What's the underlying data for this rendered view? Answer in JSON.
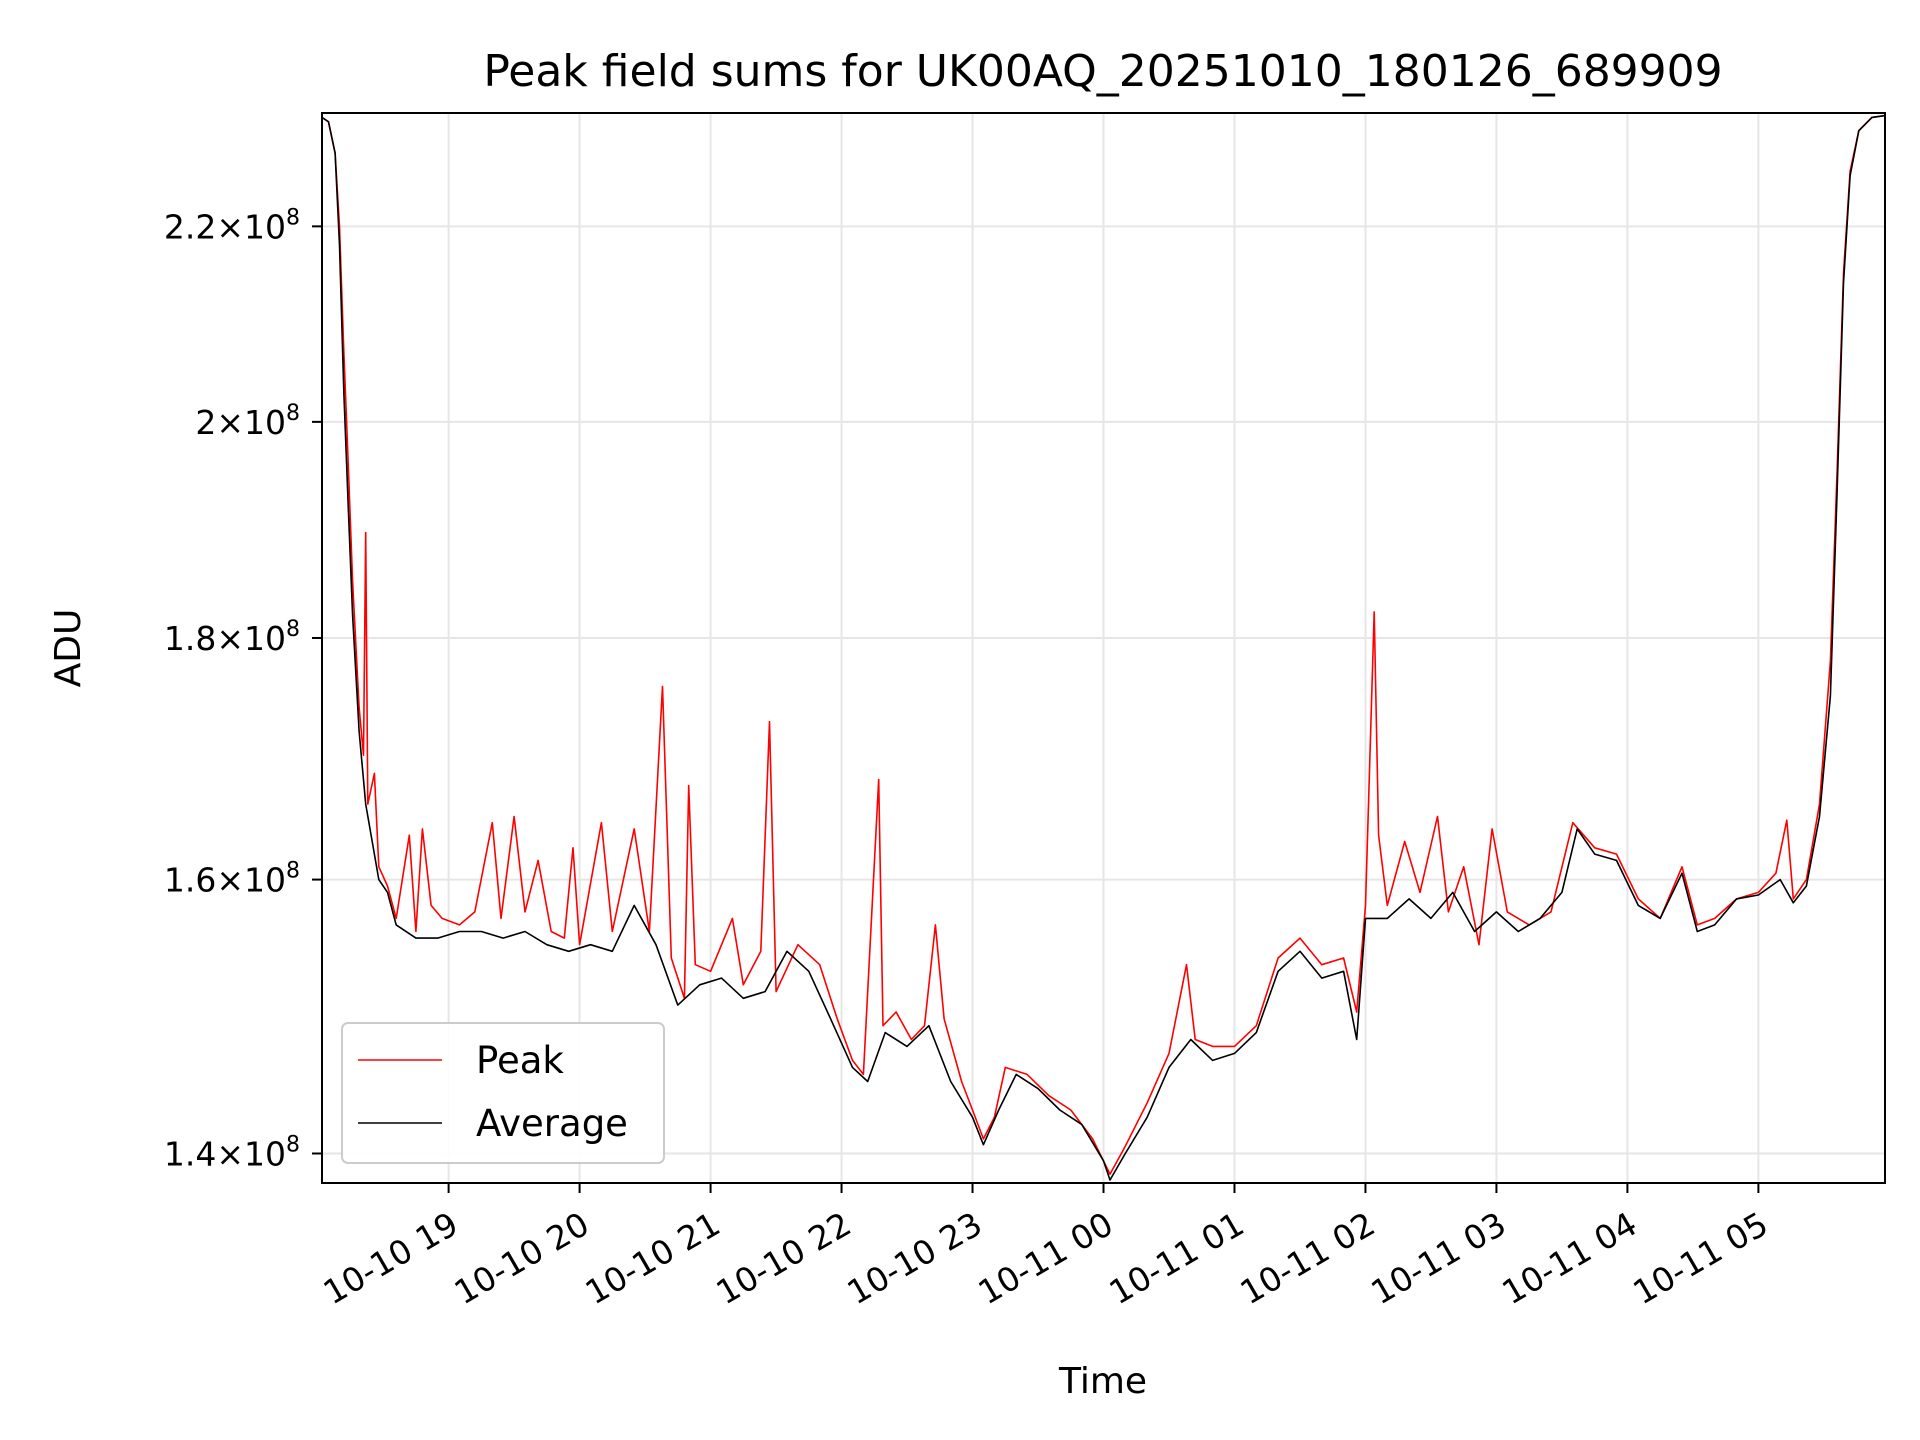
{
  "chart_data": {
    "type": "line",
    "title": "Peak field sums for UK00AQ_20251010_180126_689909",
    "xlabel": "Time",
    "ylabel": "ADU",
    "yscale": "log",
    "grid": true,
    "legend_position": "lower-left",
    "xlim": [
      "2025-10-10 18:02",
      "2025-10-11 05:58"
    ],
    "ylim": [
      138000000,
      232500000
    ],
    "x_ticks": [
      {
        "value": "2025-10-10 19:00",
        "label": "10-10 19"
      },
      {
        "value": "2025-10-10 20:00",
        "label": "10-10 20"
      },
      {
        "value": "2025-10-10 21:00",
        "label": "10-10 21"
      },
      {
        "value": "2025-10-10 22:00",
        "label": "10-10 22"
      },
      {
        "value": "2025-10-10 23:00",
        "label": "10-10 23"
      },
      {
        "value": "2025-10-11 00:00",
        "label": "10-11 00"
      },
      {
        "value": "2025-10-11 01:00",
        "label": "10-11 01"
      },
      {
        "value": "2025-10-11 02:00",
        "label": "10-11 02"
      },
      {
        "value": "2025-10-11 03:00",
        "label": "10-11 03"
      },
      {
        "value": "2025-10-11 04:00",
        "label": "10-11 04"
      },
      {
        "value": "2025-10-11 05:00",
        "label": "10-11 05"
      }
    ],
    "y_ticks": [
      {
        "value": 140000000,
        "mantissa": "1.4",
        "exponent": "8"
      },
      {
        "value": 160000000,
        "mantissa": "1.6",
        "exponent": "8"
      },
      {
        "value": 180000000,
        "mantissa": "1.8",
        "exponent": "8"
      },
      {
        "value": 200000000,
        "mantissa": "2",
        "exponent": "8"
      },
      {
        "value": 220000000,
        "mantissa": "2.2",
        "exponent": "8"
      }
    ],
    "series": [
      {
        "name": "Peak",
        "color": "#ff0000",
        "points": [
          [
            "2025-10-10 18:02",
            232000000
          ],
          [
            "2025-10-10 18:05",
            231500000
          ],
          [
            "2025-10-10 18:08",
            228000000
          ],
          [
            "2025-10-10 18:10",
            220000000
          ],
          [
            "2025-10-10 18:12",
            207000000
          ],
          [
            "2025-10-10 18:13",
            201500000
          ],
          [
            "2025-10-10 18:14",
            196000000
          ],
          [
            "2025-10-10 18:16",
            185000000
          ],
          [
            "2025-10-10 18:19",
            174000000
          ],
          [
            "2025-10-10 18:21",
            170000000
          ],
          [
            "2025-10-10 18:22",
            189500000
          ],
          [
            "2025-10-10 18:23",
            166000000
          ],
          [
            "2025-10-10 18:26",
            168500000
          ],
          [
            "2025-10-10 18:28",
            161000000
          ],
          [
            "2025-10-10 18:32",
            159500000
          ],
          [
            "2025-10-10 18:36",
            157000000
          ],
          [
            "2025-10-10 18:42",
            163500000
          ],
          [
            "2025-10-10 18:45",
            156000000
          ],
          [
            "2025-10-10 18:48",
            164000000
          ],
          [
            "2025-10-10 18:52",
            158000000
          ],
          [
            "2025-10-10 18:57",
            157000000
          ],
          [
            "2025-10-10 19:05",
            156500000
          ],
          [
            "2025-10-10 19:12",
            157500000
          ],
          [
            "2025-10-10 19:20",
            164500000
          ],
          [
            "2025-10-10 19:24",
            157000000
          ],
          [
            "2025-10-10 19:30",
            165000000
          ],
          [
            "2025-10-10 19:35",
            157500000
          ],
          [
            "2025-10-10 19:41",
            161500000
          ],
          [
            "2025-10-10 19:47",
            156000000
          ],
          [
            "2025-10-10 19:53",
            155500000
          ],
          [
            "2025-10-10 19:57",
            162500000
          ],
          [
            "2025-10-10 20:00",
            155000000
          ],
          [
            "2025-10-10 20:10",
            164500000
          ],
          [
            "2025-10-10 20:15",
            156000000
          ],
          [
            "2025-10-10 20:25",
            164000000
          ],
          [
            "2025-10-10 20:32",
            156000000
          ],
          [
            "2025-10-10 20:38",
            175800000
          ],
          [
            "2025-10-10 20:42",
            154000000
          ],
          [
            "2025-10-10 20:48",
            151000000
          ],
          [
            "2025-10-10 20:50",
            167500000
          ],
          [
            "2025-10-10 20:53",
            153500000
          ],
          [
            "2025-10-10 21:00",
            153000000
          ],
          [
            "2025-10-10 21:10",
            157000000
          ],
          [
            "2025-10-10 21:15",
            152000000
          ],
          [
            "2025-10-10 21:23",
            154500000
          ],
          [
            "2025-10-10 21:27",
            172800000
          ],
          [
            "2025-10-10 21:30",
            151500000
          ],
          [
            "2025-10-10 21:40",
            155000000
          ],
          [
            "2025-10-10 21:50",
            153500000
          ],
          [
            "2025-10-10 21:58",
            149500000
          ],
          [
            "2025-10-10 22:05",
            146500000
          ],
          [
            "2025-10-10 22:10",
            145500000
          ],
          [
            "2025-10-10 22:17",
            168000000
          ],
          [
            "2025-10-10 22:19",
            149000000
          ],
          [
            "2025-10-10 22:25",
            150000000
          ],
          [
            "2025-10-10 22:32",
            148000000
          ],
          [
            "2025-10-10 22:38",
            149000000
          ],
          [
            "2025-10-10 22:43",
            156500000
          ],
          [
            "2025-10-10 22:47",
            149500000
          ],
          [
            "2025-10-10 22:55",
            145000000
          ],
          [
            "2025-10-10 23:00",
            143000000
          ],
          [
            "2025-10-10 23:05",
            141000000
          ],
          [
            "2025-10-10 23:10",
            142500000
          ],
          [
            "2025-10-10 23:15",
            146000000
          ],
          [
            "2025-10-10 23:25",
            145500000
          ],
          [
            "2025-10-10 23:35",
            144000000
          ],
          [
            "2025-10-10 23:45",
            143000000
          ],
          [
            "2025-10-10 23:55",
            141000000
          ],
          [
            "2025-10-11 00:03",
            138600000
          ],
          [
            "2025-10-11 00:10",
            140500000
          ],
          [
            "2025-10-11 00:20",
            143500000
          ],
          [
            "2025-10-11 00:30",
            147000000
          ],
          [
            "2025-10-11 00:38",
            153500000
          ],
          [
            "2025-10-11 00:42",
            148000000
          ],
          [
            "2025-10-11 00:50",
            147500000
          ],
          [
            "2025-10-11 01:00",
            147500000
          ],
          [
            "2025-10-11 01:10",
            149000000
          ],
          [
            "2025-10-11 01:20",
            154000000
          ],
          [
            "2025-10-11 01:30",
            155500000
          ],
          [
            "2025-10-11 01:40",
            153500000
          ],
          [
            "2025-10-11 01:50",
            154000000
          ],
          [
            "2025-10-11 01:56",
            150000000
          ],
          [
            "2025-10-11 02:00",
            158000000
          ],
          [
            "2025-10-11 02:04",
            182300000
          ],
          [
            "2025-10-11 02:06",
            163500000
          ],
          [
            "2025-10-11 02:10",
            158000000
          ],
          [
            "2025-10-11 02:18",
            163000000
          ],
          [
            "2025-10-11 02:25",
            159000000
          ],
          [
            "2025-10-11 02:33",
            165000000
          ],
          [
            "2025-10-11 02:38",
            157500000
          ],
          [
            "2025-10-11 02:45",
            161000000
          ],
          [
            "2025-10-11 02:52",
            155000000
          ],
          [
            "2025-10-11 02:58",
            164000000
          ],
          [
            "2025-10-11 03:05",
            157500000
          ],
          [
            "2025-10-11 03:15",
            156500000
          ],
          [
            "2025-10-11 03:25",
            157500000
          ],
          [
            "2025-10-11 03:35",
            164500000
          ],
          [
            "2025-10-11 03:45",
            162500000
          ],
          [
            "2025-10-11 03:55",
            162000000
          ],
          [
            "2025-10-11 04:05",
            158500000
          ],
          [
            "2025-10-11 04:15",
            157000000
          ],
          [
            "2025-10-11 04:25",
            161000000
          ],
          [
            "2025-10-11 04:32",
            156500000
          ],
          [
            "2025-10-11 04:40",
            157000000
          ],
          [
            "2025-10-11 04:50",
            158500000
          ],
          [
            "2025-10-11 05:00",
            159000000
          ],
          [
            "2025-10-11 05:08",
            160500000
          ],
          [
            "2025-10-11 05:13",
            164700000
          ],
          [
            "2025-10-11 05:16",
            158500000
          ],
          [
            "2025-10-11 05:22",
            160000000
          ],
          [
            "2025-10-11 05:28",
            166000000
          ],
          [
            "2025-10-11 05:33",
            178000000
          ],
          [
            "2025-10-11 05:36",
            195000000
          ],
          [
            "2025-10-11 05:39",
            215000000
          ],
          [
            "2025-10-11 05:42",
            226000000
          ],
          [
            "2025-10-11 05:46",
            230500000
          ],
          [
            "2025-10-11 05:52",
            232000000
          ],
          [
            "2025-10-11 05:58",
            232200000
          ]
        ]
      },
      {
        "name": "Average",
        "color": "#000000",
        "points": [
          [
            "2025-10-10 18:02",
            232000000
          ],
          [
            "2025-10-10 18:05",
            231500000
          ],
          [
            "2025-10-10 18:08",
            228000000
          ],
          [
            "2025-10-10 18:10",
            218000000
          ],
          [
            "2025-10-10 18:12",
            203000000
          ],
          [
            "2025-10-10 18:14",
            192000000
          ],
          [
            "2025-10-10 18:16",
            182000000
          ],
          [
            "2025-10-10 18:19",
            172000000
          ],
          [
            "2025-10-10 18:22",
            166000000
          ],
          [
            "2025-10-10 18:25",
            163000000
          ],
          [
            "2025-10-10 18:28",
            160000000
          ],
          [
            "2025-10-10 18:32",
            159000000
          ],
          [
            "2025-10-10 18:36",
            156500000
          ],
          [
            "2025-10-10 18:45",
            155500000
          ],
          [
            "2025-10-10 18:55",
            155500000
          ],
          [
            "2025-10-10 19:05",
            156000000
          ],
          [
            "2025-10-10 19:15",
            156000000
          ],
          [
            "2025-10-10 19:25",
            155500000
          ],
          [
            "2025-10-10 19:35",
            156000000
          ],
          [
            "2025-10-10 19:45",
            155000000
          ],
          [
            "2025-10-10 19:55",
            154500000
          ],
          [
            "2025-10-10 20:05",
            155000000
          ],
          [
            "2025-10-10 20:15",
            154500000
          ],
          [
            "2025-10-10 20:25",
            158000000
          ],
          [
            "2025-10-10 20:35",
            155000000
          ],
          [
            "2025-10-10 20:45",
            150500000
          ],
          [
            "2025-10-10 20:55",
            152000000
          ],
          [
            "2025-10-10 21:05",
            152500000
          ],
          [
            "2025-10-10 21:15",
            151000000
          ],
          [
            "2025-10-10 21:25",
            151500000
          ],
          [
            "2025-10-10 21:35",
            154500000
          ],
          [
            "2025-10-10 21:45",
            153000000
          ],
          [
            "2025-10-10 21:55",
            149500000
          ],
          [
            "2025-10-10 22:05",
            146000000
          ],
          [
            "2025-10-10 22:12",
            145000000
          ],
          [
            "2025-10-10 22:20",
            148500000
          ],
          [
            "2025-10-10 22:30",
            147500000
          ],
          [
            "2025-10-10 22:40",
            149000000
          ],
          [
            "2025-10-10 22:50",
            145000000
          ],
          [
            "2025-10-10 23:00",
            142500000
          ],
          [
            "2025-10-10 23:05",
            140600000
          ],
          [
            "2025-10-10 23:12",
            143000000
          ],
          [
            "2025-10-10 23:20",
            145500000
          ],
          [
            "2025-10-10 23:30",
            144500000
          ],
          [
            "2025-10-10 23:40",
            143000000
          ],
          [
            "2025-10-10 23:50",
            142000000
          ],
          [
            "2025-10-11 00:00",
            139500000
          ],
          [
            "2025-10-11 00:03",
            138200000
          ],
          [
            "2025-10-11 00:10",
            140000000
          ],
          [
            "2025-10-11 00:20",
            142500000
          ],
          [
            "2025-10-11 00:30",
            146000000
          ],
          [
            "2025-10-11 00:40",
            148000000
          ],
          [
            "2025-10-11 00:50",
            146500000
          ],
          [
            "2025-10-11 01:00",
            147000000
          ],
          [
            "2025-10-11 01:10",
            148500000
          ],
          [
            "2025-10-11 01:20",
            153000000
          ],
          [
            "2025-10-11 01:30",
            154500000
          ],
          [
            "2025-10-11 01:40",
            152500000
          ],
          [
            "2025-10-11 01:50",
            153000000
          ],
          [
            "2025-10-11 01:56",
            148000000
          ],
          [
            "2025-10-11 02:00",
            157000000
          ],
          [
            "2025-10-11 02:10",
            157000000
          ],
          [
            "2025-10-11 02:20",
            158500000
          ],
          [
            "2025-10-11 02:30",
            157000000
          ],
          [
            "2025-10-11 02:40",
            159000000
          ],
          [
            "2025-10-11 02:50",
            156000000
          ],
          [
            "2025-10-11 03:00",
            157500000
          ],
          [
            "2025-10-11 03:10",
            156000000
          ],
          [
            "2025-10-11 03:20",
            157000000
          ],
          [
            "2025-10-11 03:30",
            159000000
          ],
          [
            "2025-10-11 03:37",
            164000000
          ],
          [
            "2025-10-11 03:45",
            162000000
          ],
          [
            "2025-10-11 03:55",
            161500000
          ],
          [
            "2025-10-11 04:05",
            158000000
          ],
          [
            "2025-10-11 04:15",
            157000000
          ],
          [
            "2025-10-11 04:25",
            160500000
          ],
          [
            "2025-10-11 04:32",
            156000000
          ],
          [
            "2025-10-11 04:40",
            156500000
          ],
          [
            "2025-10-11 04:50",
            158500000
          ],
          [
            "2025-10-11 05:00",
            158800000
          ],
          [
            "2025-10-11 05:10",
            160000000
          ],
          [
            "2025-10-11 05:16",
            158200000
          ],
          [
            "2025-10-11 05:22",
            159500000
          ],
          [
            "2025-10-11 05:28",
            165000000
          ],
          [
            "2025-10-11 05:33",
            175000000
          ],
          [
            "2025-10-11 05:36",
            193000000
          ],
          [
            "2025-10-11 05:39",
            214000000
          ],
          [
            "2025-10-11 05:42",
            225500000
          ],
          [
            "2025-10-11 05:46",
            230500000
          ],
          [
            "2025-10-11 05:52",
            232000000
          ],
          [
            "2025-10-11 05:58",
            232200000
          ]
        ]
      }
    ]
  }
}
